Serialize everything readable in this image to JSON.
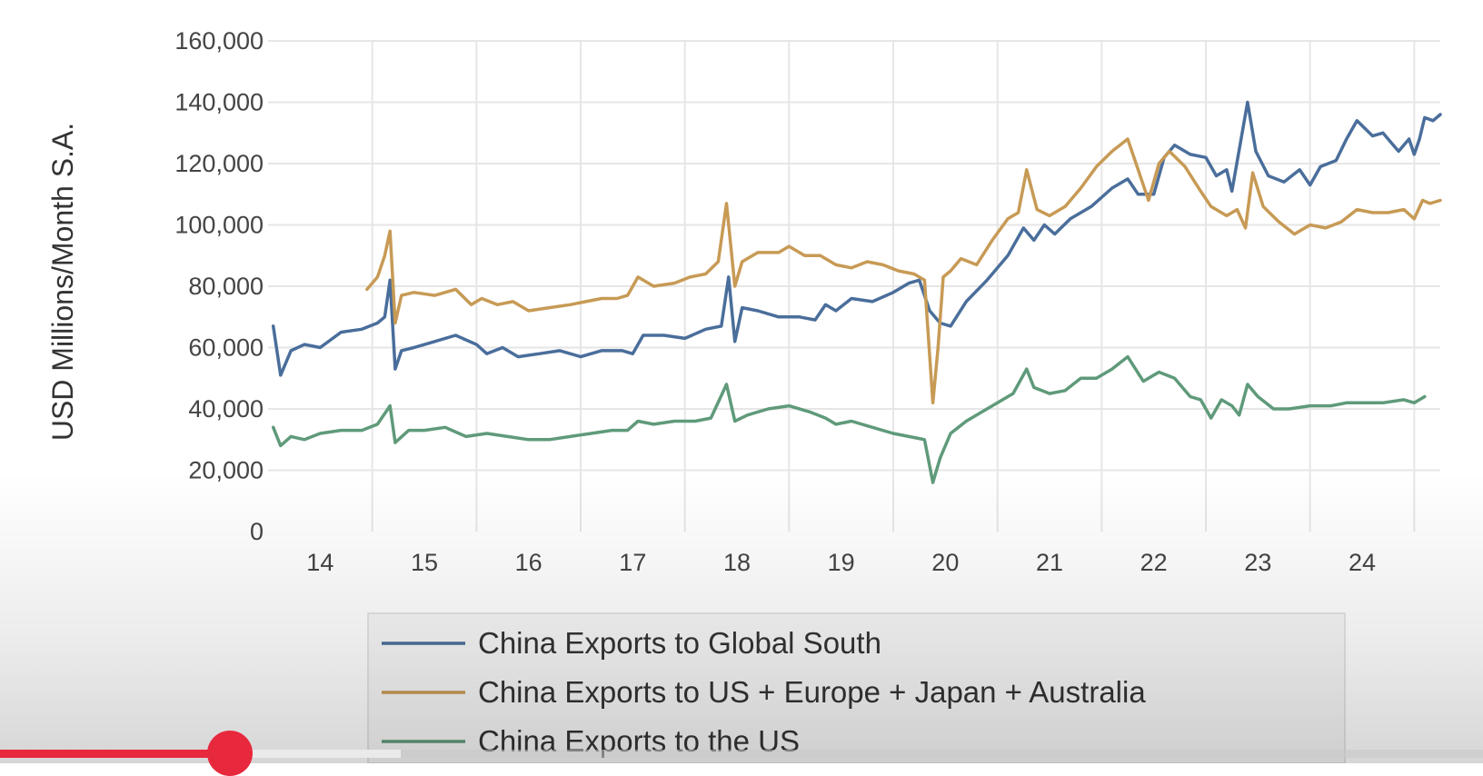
{
  "chart_data": {
    "type": "line",
    "title": "",
    "xlabel": "",
    "ylabel": "USD Millions/Month S.A.",
    "ylim": [
      0,
      160000
    ],
    "yticks": [
      "0",
      "20,000",
      "40,000",
      "60,000",
      "80,000",
      "100,000",
      "120,000",
      "140,000",
      "160,000"
    ],
    "xticks": [
      "14",
      "15",
      "16",
      "17",
      "18",
      "19",
      "20",
      "21",
      "22",
      "23",
      "24"
    ],
    "xlim": [
      2013.5,
      2024.75
    ],
    "grid": true,
    "legend_position": "bottom",
    "series": [
      {
        "name": "China Exports to Global South",
        "color": "#4a6e9b",
        "points": [
          [
            2013.55,
            67000
          ],
          [
            2013.62,
            51000
          ],
          [
            2013.72,
            59000
          ],
          [
            2013.85,
            61000
          ],
          [
            2014.0,
            60000
          ],
          [
            2014.2,
            65000
          ],
          [
            2014.4,
            66000
          ],
          [
            2014.55,
            68000
          ],
          [
            2014.62,
            70000
          ],
          [
            2014.67,
            82000
          ],
          [
            2014.72,
            53000
          ],
          [
            2014.78,
            59000
          ],
          [
            2014.9,
            60000
          ],
          [
            2015.1,
            62000
          ],
          [
            2015.3,
            64000
          ],
          [
            2015.5,
            61000
          ],
          [
            2015.6,
            58000
          ],
          [
            2015.75,
            60000
          ],
          [
            2015.9,
            57000
          ],
          [
            2016.1,
            58000
          ],
          [
            2016.3,
            59000
          ],
          [
            2016.5,
            57000
          ],
          [
            2016.7,
            59000
          ],
          [
            2016.9,
            59000
          ],
          [
            2017.0,
            58000
          ],
          [
            2017.1,
            64000
          ],
          [
            2017.3,
            64000
          ],
          [
            2017.5,
            63000
          ],
          [
            2017.7,
            66000
          ],
          [
            2017.85,
            67000
          ],
          [
            2017.92,
            83000
          ],
          [
            2017.98,
            62000
          ],
          [
            2018.05,
            73000
          ],
          [
            2018.2,
            72000
          ],
          [
            2018.4,
            70000
          ],
          [
            2018.6,
            70000
          ],
          [
            2018.75,
            69000
          ],
          [
            2018.85,
            74000
          ],
          [
            2018.95,
            72000
          ],
          [
            2019.1,
            76000
          ],
          [
            2019.3,
            75000
          ],
          [
            2019.5,
            78000
          ],
          [
            2019.65,
            81000
          ],
          [
            2019.75,
            82000
          ],
          [
            2019.85,
            72000
          ],
          [
            2019.95,
            68000
          ],
          [
            2020.05,
            67000
          ],
          [
            2020.2,
            75000
          ],
          [
            2020.4,
            82000
          ],
          [
            2020.6,
            90000
          ],
          [
            2020.75,
            99000
          ],
          [
            2020.85,
            95000
          ],
          [
            2020.95,
            100000
          ],
          [
            2021.05,
            97000
          ],
          [
            2021.2,
            102000
          ],
          [
            2021.4,
            106000
          ],
          [
            2021.6,
            112000
          ],
          [
            2021.75,
            115000
          ],
          [
            2021.85,
            110000
          ],
          [
            2022.0,
            110000
          ],
          [
            2022.1,
            122000
          ],
          [
            2022.2,
            126000
          ],
          [
            2022.35,
            123000
          ],
          [
            2022.5,
            122000
          ],
          [
            2022.6,
            116000
          ],
          [
            2022.7,
            118000
          ],
          [
            2022.75,
            111000
          ],
          [
            2022.9,
            140000
          ],
          [
            2022.98,
            124000
          ],
          [
            2023.1,
            116000
          ],
          [
            2023.25,
            114000
          ],
          [
            2023.4,
            118000
          ],
          [
            2023.5,
            113000
          ],
          [
            2023.6,
            119000
          ],
          [
            2023.75,
            121000
          ],
          [
            2023.85,
            128000
          ],
          [
            2023.95,
            134000
          ],
          [
            2024.1,
            129000
          ],
          [
            2024.2,
            130000
          ],
          [
            2024.35,
            124000
          ],
          [
            2024.45,
            128000
          ],
          [
            2024.5,
            123000
          ],
          [
            2024.55,
            128000
          ],
          [
            2024.6,
            135000
          ],
          [
            2024.68,
            134000
          ],
          [
            2024.75,
            136000
          ]
        ]
      },
      {
        "name": "China Exports to US + Europe + Japan + Australia",
        "color": "#c79a55",
        "points": [
          [
            2014.45,
            79000
          ],
          [
            2014.55,
            83000
          ],
          [
            2014.62,
            90000
          ],
          [
            2014.67,
            98000
          ],
          [
            2014.72,
            68000
          ],
          [
            2014.78,
            77000
          ],
          [
            2014.9,
            78000
          ],
          [
            2015.1,
            77000
          ],
          [
            2015.3,
            79000
          ],
          [
            2015.45,
            74000
          ],
          [
            2015.55,
            76000
          ],
          [
            2015.7,
            74000
          ],
          [
            2015.85,
            75000
          ],
          [
            2016.0,
            72000
          ],
          [
            2016.2,
            73000
          ],
          [
            2016.4,
            74000
          ],
          [
            2016.55,
            75000
          ],
          [
            2016.7,
            76000
          ],
          [
            2016.85,
            76000
          ],
          [
            2016.95,
            77000
          ],
          [
            2017.05,
            83000
          ],
          [
            2017.2,
            80000
          ],
          [
            2017.4,
            81000
          ],
          [
            2017.55,
            83000
          ],
          [
            2017.7,
            84000
          ],
          [
            2017.82,
            88000
          ],
          [
            2017.9,
            107000
          ],
          [
            2017.98,
            80000
          ],
          [
            2018.05,
            88000
          ],
          [
            2018.2,
            91000
          ],
          [
            2018.4,
            91000
          ],
          [
            2018.5,
            93000
          ],
          [
            2018.65,
            90000
          ],
          [
            2018.8,
            90000
          ],
          [
            2018.95,
            87000
          ],
          [
            2019.1,
            86000
          ],
          [
            2019.25,
            88000
          ],
          [
            2019.4,
            87000
          ],
          [
            2019.55,
            85000
          ],
          [
            2019.7,
            84000
          ],
          [
            2019.8,
            82000
          ],
          [
            2019.88,
            42000
          ],
          [
            2019.93,
            60000
          ],
          [
            2019.98,
            83000
          ],
          [
            2020.05,
            85000
          ],
          [
            2020.15,
            89000
          ],
          [
            2020.3,
            87000
          ],
          [
            2020.45,
            95000
          ],
          [
            2020.6,
            102000
          ],
          [
            2020.7,
            104000
          ],
          [
            2020.78,
            118000
          ],
          [
            2020.88,
            105000
          ],
          [
            2021.0,
            103000
          ],
          [
            2021.15,
            106000
          ],
          [
            2021.3,
            112000
          ],
          [
            2021.45,
            119000
          ],
          [
            2021.6,
            124000
          ],
          [
            2021.75,
            128000
          ],
          [
            2021.85,
            118000
          ],
          [
            2021.95,
            108000
          ],
          [
            2022.05,
            120000
          ],
          [
            2022.15,
            124000
          ],
          [
            2022.3,
            119000
          ],
          [
            2022.45,
            111000
          ],
          [
            2022.55,
            106000
          ],
          [
            2022.7,
            103000
          ],
          [
            2022.8,
            105000
          ],
          [
            2022.88,
            99000
          ],
          [
            2022.95,
            117000
          ],
          [
            2023.05,
            106000
          ],
          [
            2023.2,
            101000
          ],
          [
            2023.35,
            97000
          ],
          [
            2023.5,
            100000
          ],
          [
            2023.65,
            99000
          ],
          [
            2023.8,
            101000
          ],
          [
            2023.95,
            105000
          ],
          [
            2024.1,
            104000
          ],
          [
            2024.25,
            104000
          ],
          [
            2024.4,
            105000
          ],
          [
            2024.5,
            102000
          ],
          [
            2024.58,
            108000
          ],
          [
            2024.65,
            107000
          ],
          [
            2024.75,
            108000
          ]
        ]
      },
      {
        "name": "China Exports to the US",
        "color": "#5f9a7a",
        "points": [
          [
            2013.55,
            34000
          ],
          [
            2013.62,
            28000
          ],
          [
            2013.72,
            31000
          ],
          [
            2013.85,
            30000
          ],
          [
            2014.0,
            32000
          ],
          [
            2014.2,
            33000
          ],
          [
            2014.4,
            33000
          ],
          [
            2014.55,
            35000
          ],
          [
            2014.67,
            41000
          ],
          [
            2014.72,
            29000
          ],
          [
            2014.85,
            33000
          ],
          [
            2015.0,
            33000
          ],
          [
            2015.2,
            34000
          ],
          [
            2015.4,
            31000
          ],
          [
            2015.6,
            32000
          ],
          [
            2015.8,
            31000
          ],
          [
            2016.0,
            30000
          ],
          [
            2016.2,
            30000
          ],
          [
            2016.4,
            31000
          ],
          [
            2016.6,
            32000
          ],
          [
            2016.8,
            33000
          ],
          [
            2016.95,
            33000
          ],
          [
            2017.05,
            36000
          ],
          [
            2017.2,
            35000
          ],
          [
            2017.4,
            36000
          ],
          [
            2017.6,
            36000
          ],
          [
            2017.75,
            37000
          ],
          [
            2017.9,
            48000
          ],
          [
            2017.98,
            36000
          ],
          [
            2018.1,
            38000
          ],
          [
            2018.3,
            40000
          ],
          [
            2018.5,
            41000
          ],
          [
            2018.7,
            39000
          ],
          [
            2018.85,
            37000
          ],
          [
            2018.95,
            35000
          ],
          [
            2019.1,
            36000
          ],
          [
            2019.3,
            34000
          ],
          [
            2019.5,
            32000
          ],
          [
            2019.65,
            31000
          ],
          [
            2019.8,
            30000
          ],
          [
            2019.88,
            16000
          ],
          [
            2019.95,
            24000
          ],
          [
            2020.05,
            32000
          ],
          [
            2020.2,
            36000
          ],
          [
            2020.4,
            40000
          ],
          [
            2020.55,
            43000
          ],
          [
            2020.65,
            45000
          ],
          [
            2020.78,
            53000
          ],
          [
            2020.85,
            47000
          ],
          [
            2021.0,
            45000
          ],
          [
            2021.15,
            46000
          ],
          [
            2021.3,
            50000
          ],
          [
            2021.45,
            50000
          ],
          [
            2021.6,
            53000
          ],
          [
            2021.75,
            57000
          ],
          [
            2021.9,
            49000
          ],
          [
            2022.05,
            52000
          ],
          [
            2022.2,
            50000
          ],
          [
            2022.35,
            44000
          ],
          [
            2022.45,
            43000
          ],
          [
            2022.55,
            37000
          ],
          [
            2022.65,
            43000
          ],
          [
            2022.75,
            41000
          ],
          [
            2022.82,
            38000
          ],
          [
            2022.9,
            48000
          ],
          [
            2023.0,
            44000
          ],
          [
            2023.15,
            40000
          ],
          [
            2023.3,
            40000
          ],
          [
            2023.5,
            41000
          ],
          [
            2023.7,
            41000
          ],
          [
            2023.85,
            42000
          ],
          [
            2024.0,
            42000
          ],
          [
            2024.2,
            42000
          ],
          [
            2024.4,
            43000
          ],
          [
            2024.5,
            42000
          ],
          [
            2024.6,
            44000
          ]
        ]
      }
    ]
  },
  "player": {
    "progress": 0.155,
    "buffered": 0.27
  }
}
